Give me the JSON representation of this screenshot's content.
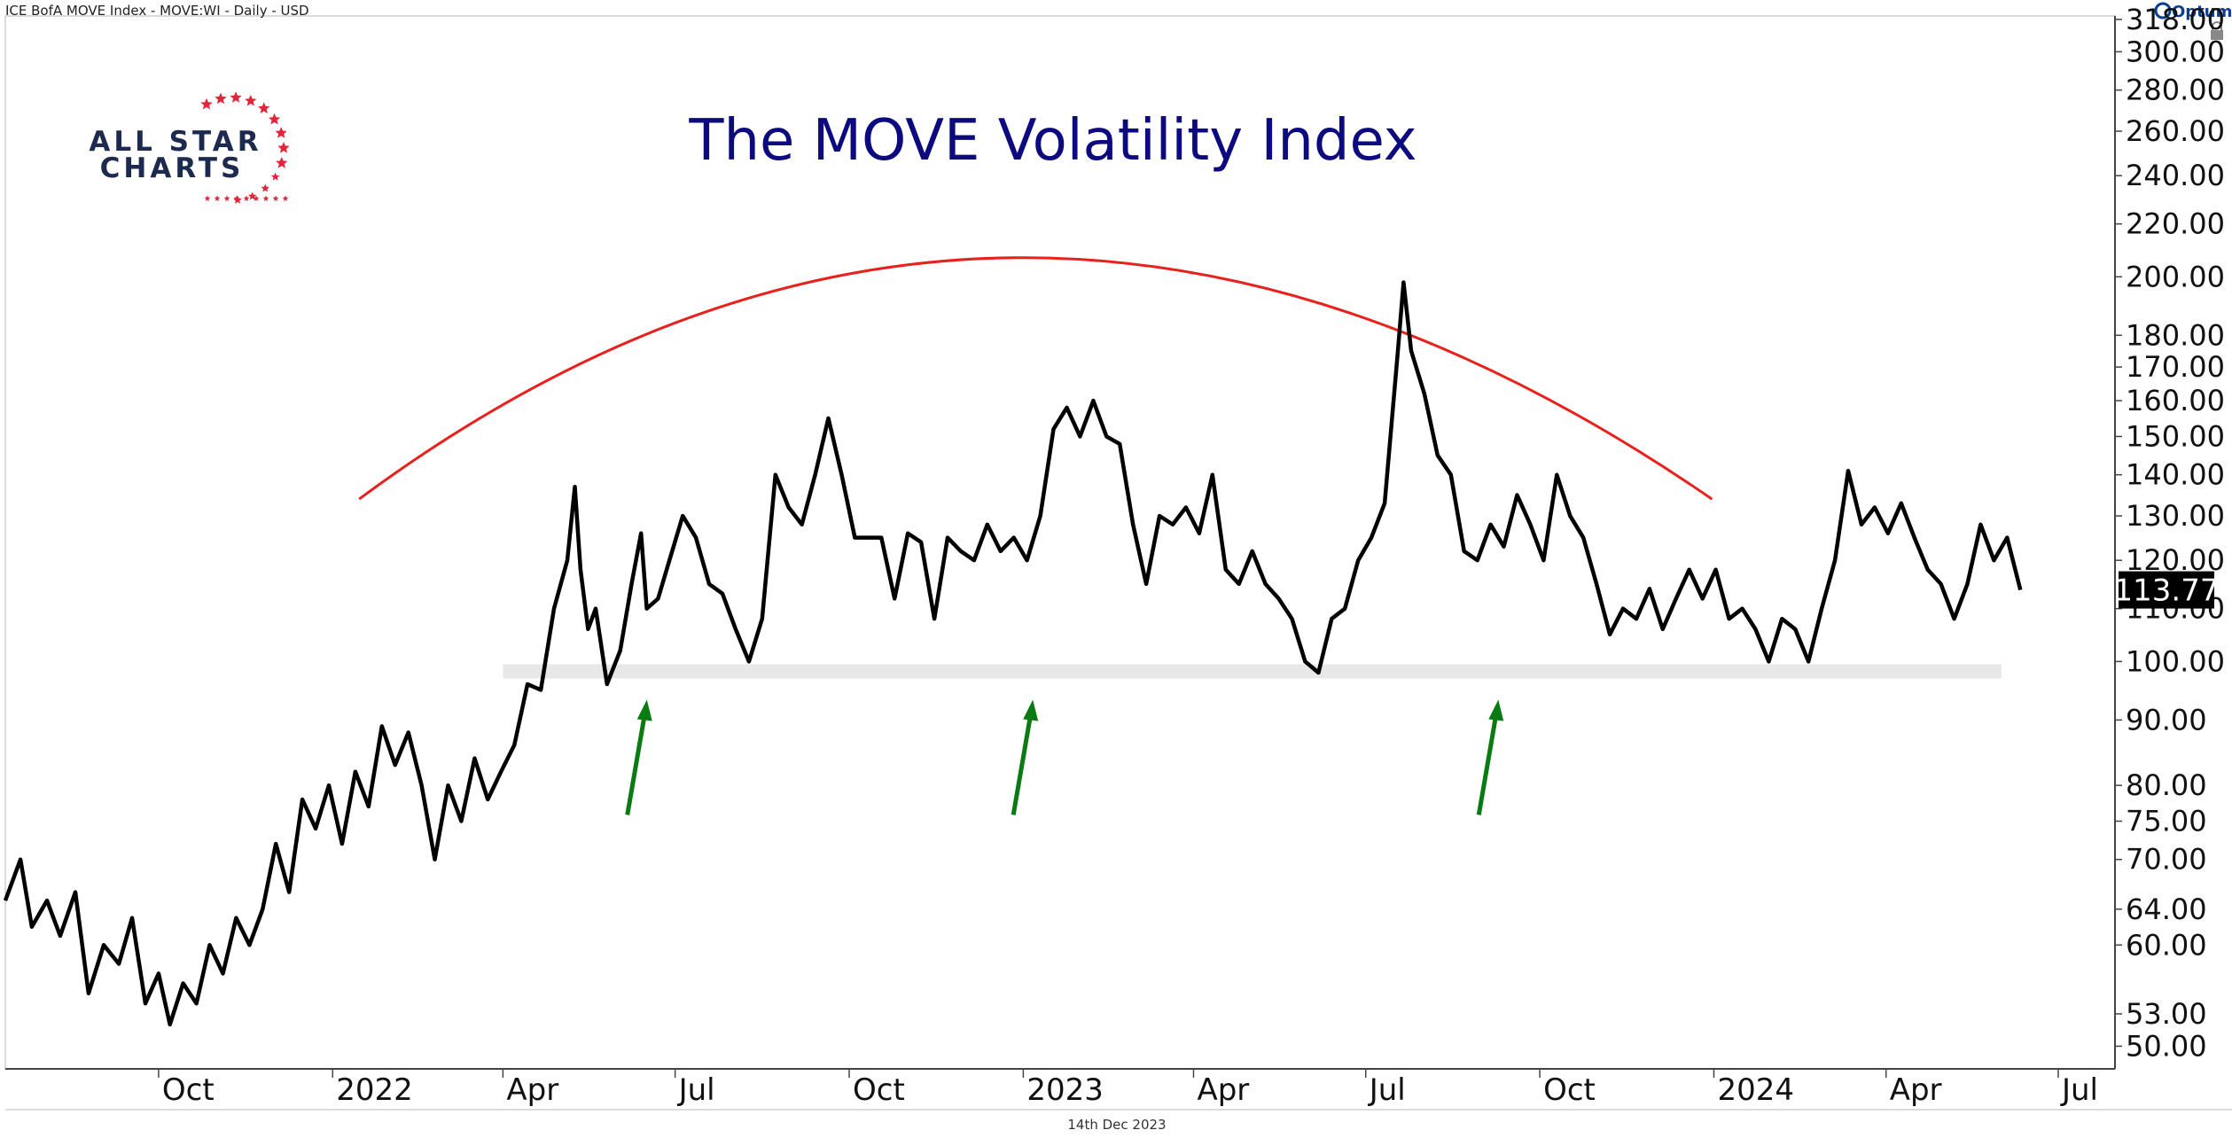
{
  "header": {
    "instrument": "ICE BofA MOVE Index - MOVE:WI - Daily - USD"
  },
  "brand": {
    "name": "Optuma"
  },
  "logo": {
    "line1": "ALL STAR",
    "line2": "CHARTS",
    "navy": "#1b2a4e",
    "red": "#e0263b"
  },
  "footer": {
    "date": "14th Dec 2023"
  },
  "last_price": {
    "value": "113.77",
    "bg": "#000000",
    "fg": "#ffffff"
  },
  "colors": {
    "price_line": "#000000",
    "arc": "#e8211d",
    "support_band": "#e8e8e8",
    "arrows": "#0a7a12",
    "title": "#0c0a7e"
  },
  "chart_data": {
    "type": "line",
    "title": "The MOVE Volatility Index",
    "scale": "log",
    "ylim": [
      48,
      320
    ],
    "xlim": [
      "2021-07-12",
      "2024-07-31"
    ],
    "y_ticks": [
      318,
      300,
      280,
      260,
      240,
      220,
      200,
      180,
      170,
      160,
      150,
      140,
      130,
      120,
      110,
      100,
      90,
      80,
      75,
      70,
      64,
      60,
      53,
      50
    ],
    "y_tick_labels": [
      "318.00",
      "300.00",
      "280.00",
      "260.00",
      "240.00",
      "220.00",
      "200.00",
      "180.00",
      "170.00",
      "160.00",
      "150.00",
      "140.00",
      "130.00",
      "120.00",
      "110.00",
      "100.00",
      "90.00",
      "80.00",
      "75.00",
      "70.00",
      "64.00",
      "60.00",
      "53.00",
      "50.00"
    ],
    "x_ticks": [
      {
        "label": "Oct",
        "date": "2021-10-01"
      },
      {
        "label": "2022",
        "date": "2022-01-01"
      },
      {
        "label": "Apr",
        "date": "2022-04-01"
      },
      {
        "label": "Jul",
        "date": "2022-07-01"
      },
      {
        "label": "Oct",
        "date": "2022-10-01"
      },
      {
        "label": "2023",
        "date": "2023-01-01"
      },
      {
        "label": "Apr",
        "date": "2023-04-01"
      },
      {
        "label": "Jul",
        "date": "2023-07-01"
      },
      {
        "label": "Oct",
        "date": "2023-10-01"
      },
      {
        "label": "2024",
        "date": "2024-01-01"
      },
      {
        "label": "Apr",
        "date": "2024-04-01"
      },
      {
        "label": "Jul",
        "date": "2024-07-01"
      }
    ],
    "series": [
      {
        "values": [
          [
            "2021-07-12",
            65
          ],
          [
            "2021-07-20",
            70
          ],
          [
            "2021-07-26",
            62
          ],
          [
            "2021-08-03",
            65
          ],
          [
            "2021-08-10",
            61
          ],
          [
            "2021-08-18",
            66
          ],
          [
            "2021-08-25",
            55
          ],
          [
            "2021-09-02",
            60
          ],
          [
            "2021-09-10",
            58
          ],
          [
            "2021-09-17",
            63
          ],
          [
            "2021-09-24",
            54
          ],
          [
            "2021-10-01",
            57
          ],
          [
            "2021-10-07",
            52
          ],
          [
            "2021-10-14",
            56
          ],
          [
            "2021-10-21",
            54
          ],
          [
            "2021-10-28",
            60
          ],
          [
            "2021-11-04",
            57
          ],
          [
            "2021-11-11",
            63
          ],
          [
            "2021-11-18",
            60
          ],
          [
            "2021-11-25",
            64
          ],
          [
            "2021-12-02",
            72
          ],
          [
            "2021-12-09",
            66
          ],
          [
            "2021-12-16",
            78
          ],
          [
            "2021-12-23",
            74
          ],
          [
            "2021-12-30",
            80
          ],
          [
            "2022-01-06",
            72
          ],
          [
            "2022-01-13",
            82
          ],
          [
            "2022-01-20",
            77
          ],
          [
            "2022-01-27",
            89
          ],
          [
            "2022-02-03",
            83
          ],
          [
            "2022-02-10",
            88
          ],
          [
            "2022-02-17",
            80
          ],
          [
            "2022-02-24",
            70
          ],
          [
            "2022-03-03",
            80
          ],
          [
            "2022-03-10",
            75
          ],
          [
            "2022-03-17",
            84
          ],
          [
            "2022-03-24",
            78
          ],
          [
            "2022-03-31",
            82
          ],
          [
            "2022-04-07",
            86
          ],
          [
            "2022-04-14",
            96
          ],
          [
            "2022-04-21",
            95
          ],
          [
            "2022-04-28",
            110
          ],
          [
            "2022-05-05",
            120
          ],
          [
            "2022-05-09",
            137
          ],
          [
            "2022-05-12",
            118
          ],
          [
            "2022-05-16",
            106
          ],
          [
            "2022-05-20",
            110
          ],
          [
            "2022-05-26",
            96
          ],
          [
            "2022-06-02",
            102
          ],
          [
            "2022-06-08",
            115
          ],
          [
            "2022-06-13",
            126
          ],
          [
            "2022-06-16",
            110
          ],
          [
            "2022-06-22",
            112
          ],
          [
            "2022-06-28",
            120
          ],
          [
            "2022-07-05",
            130
          ],
          [
            "2022-07-12",
            125
          ],
          [
            "2022-07-19",
            115
          ],
          [
            "2022-07-26",
            113
          ],
          [
            "2022-08-02",
            106
          ],
          [
            "2022-08-09",
            100
          ],
          [
            "2022-08-16",
            108
          ],
          [
            "2022-08-23",
            140
          ],
          [
            "2022-08-30",
            132
          ],
          [
            "2022-09-06",
            128
          ],
          [
            "2022-09-13",
            140
          ],
          [
            "2022-09-20",
            155
          ],
          [
            "2022-09-27",
            140
          ],
          [
            "2022-10-04",
            125
          ],
          [
            "2022-10-11",
            125
          ],
          [
            "2022-10-18",
            125
          ],
          [
            "2022-10-25",
            112
          ],
          [
            "2022-11-01",
            126
          ],
          [
            "2022-11-08",
            124
          ],
          [
            "2022-11-15",
            108
          ],
          [
            "2022-11-22",
            125
          ],
          [
            "2022-11-29",
            122
          ],
          [
            "2022-12-06",
            120
          ],
          [
            "2022-12-13",
            128
          ],
          [
            "2022-12-20",
            122
          ],
          [
            "2022-12-27",
            125
          ],
          [
            "2023-01-03",
            120
          ],
          [
            "2023-01-10",
            130
          ],
          [
            "2023-01-17",
            152
          ],
          [
            "2023-01-24",
            158
          ],
          [
            "2023-01-31",
            150
          ],
          [
            "2023-02-07",
            160
          ],
          [
            "2023-02-14",
            150
          ],
          [
            "2023-02-21",
            148
          ],
          [
            "2023-02-28",
            128
          ],
          [
            "2023-03-07",
            115
          ],
          [
            "2023-03-14",
            130
          ],
          [
            "2023-03-21",
            128
          ],
          [
            "2023-03-28",
            132
          ],
          [
            "2023-04-04",
            126
          ],
          [
            "2023-04-11",
            140
          ],
          [
            "2023-04-18",
            118
          ],
          [
            "2023-04-25",
            115
          ],
          [
            "2023-05-02",
            122
          ],
          [
            "2023-05-09",
            115
          ],
          [
            "2023-05-16",
            112
          ],
          [
            "2023-05-23",
            108
          ],
          [
            "2023-05-30",
            100
          ],
          [
            "2023-06-06",
            98
          ],
          [
            "2023-06-13",
            108
          ],
          [
            "2023-06-20",
            110
          ],
          [
            "2023-06-27",
            120
          ],
          [
            "2023-07-04",
            125
          ],
          [
            "2023-07-11",
            133
          ],
          [
            "2023-07-18",
            175
          ],
          [
            "2023-07-21",
            198
          ],
          [
            "2023-07-25",
            175
          ],
          [
            "2023-08-01",
            162
          ],
          [
            "2023-08-08",
            145
          ],
          [
            "2023-08-15",
            140
          ],
          [
            "2023-08-22",
            122
          ],
          [
            "2023-08-29",
            120
          ],
          [
            "2023-09-05",
            128
          ],
          [
            "2023-09-12",
            123
          ],
          [
            "2023-09-19",
            135
          ],
          [
            "2023-09-26",
            128
          ],
          [
            "2023-10-03",
            120
          ],
          [
            "2023-10-10",
            140
          ],
          [
            "2023-10-17",
            130
          ],
          [
            "2023-10-24",
            125
          ],
          [
            "2023-10-31",
            115
          ],
          [
            "2023-11-07",
            105
          ],
          [
            "2023-11-14",
            110
          ],
          [
            "2023-11-21",
            108
          ],
          [
            "2023-11-28",
            114
          ],
          [
            "2023-12-05",
            106
          ],
          [
            "2023-12-12",
            112
          ],
          [
            "2023-12-19",
            118
          ],
          [
            "2023-12-26",
            112
          ],
          [
            "2024-01-02",
            118
          ],
          [
            "2024-01-09",
            108
          ],
          [
            "2024-01-16",
            110
          ],
          [
            "2024-01-23",
            106
          ],
          [
            "2024-01-30",
            100
          ],
          [
            "2024-02-06",
            108
          ],
          [
            "2024-02-13",
            106
          ],
          [
            "2024-02-20",
            100
          ],
          [
            "2024-02-27",
            110
          ],
          [
            "2024-03-05",
            120
          ],
          [
            "2024-03-12",
            141
          ],
          [
            "2024-03-19",
            128
          ],
          [
            "2024-03-26",
            132
          ],
          [
            "2024-04-02",
            126
          ],
          [
            "2024-04-09",
            133
          ],
          [
            "2024-04-16",
            125
          ],
          [
            "2024-04-23",
            118
          ],
          [
            "2024-04-30",
            115
          ],
          [
            "2024-05-07",
            108
          ],
          [
            "2024-05-14",
            115
          ],
          [
            "2024-05-21",
            128
          ],
          [
            "2024-05-28",
            120
          ],
          [
            "2024-06-04",
            125
          ],
          [
            "2024-06-11",
            113.77
          ]
        ]
      }
    ],
    "support_band": {
      "from": 97,
      "to": 99.5,
      "start": "2022-04-01",
      "end": "2024-06-01"
    },
    "arc": {
      "start": [
        "2022-01-15",
        134
      ],
      "peak": [
        "2023-01-01",
        207
      ],
      "end": [
        "2023-12-31",
        134
      ]
    },
    "support_tests": [
      {
        "date": "2022-06-17",
        "value": 97
      },
      {
        "date": "2023-01-07",
        "value": 97
      },
      {
        "date": "2023-09-10",
        "value": 97
      }
    ]
  }
}
